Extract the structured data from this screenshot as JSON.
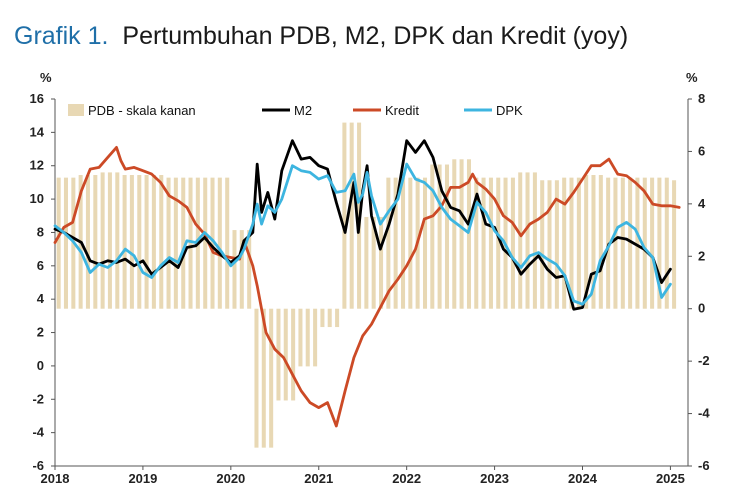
{
  "chart_data": {
    "type": "line",
    "title_prefix": "Grafik 1.",
    "title": "Pertumbuhan PDB, M2, DPK dan Kredit (yoy)",
    "left_axis": {
      "unit": "%",
      "ylim": [
        -6,
        16
      ],
      "ticks": [
        16,
        14,
        12,
        10,
        8,
        6,
        4,
        2,
        0,
        -2,
        -4,
        -6
      ]
    },
    "right_axis": {
      "unit": "%",
      "ylim": [
        -6,
        8
      ],
      "ticks": [
        8,
        6,
        4,
        2,
        0,
        -2,
        -4,
        -6
      ]
    },
    "x_axis": {
      "xlim": [
        2018,
        2025.2
      ],
      "ticks": [
        2018,
        2019,
        2020,
        2021,
        2022,
        2023,
        2024,
        2025
      ]
    },
    "legend_placement": "top",
    "colors": {
      "pdb": "#e8d8b4",
      "m2": "#000000",
      "kredit": "#cc4a26",
      "dpk": "#3db5e0"
    },
    "series": [
      {
        "name": "PDB - skala kanan",
        "axis": "right",
        "kind": "bar",
        "x": [
          2018.0,
          2018.083,
          2018.167,
          2018.25,
          2018.333,
          2018.417,
          2018.5,
          2018.583,
          2018.667,
          2018.75,
          2018.833,
          2018.917,
          2019.0,
          2019.083,
          2019.167,
          2019.25,
          2019.333,
          2019.417,
          2019.5,
          2019.583,
          2019.667,
          2019.75,
          2019.833,
          2019.917,
          2020.0,
          2020.083,
          2020.167,
          2020.25,
          2020.333,
          2020.417,
          2020.5,
          2020.583,
          2020.667,
          2020.75,
          2020.833,
          2020.917,
          2021.0,
          2021.083,
          2021.167,
          2021.25,
          2021.333,
          2021.417,
          2021.5,
          2021.583,
          2021.667,
          2021.75,
          2021.833,
          2021.917,
          2022.0,
          2022.083,
          2022.167,
          2022.25,
          2022.333,
          2022.417,
          2022.5,
          2022.583,
          2022.667,
          2022.75,
          2022.833,
          2022.917,
          2023.0,
          2023.083,
          2023.167,
          2023.25,
          2023.333,
          2023.417,
          2023.5,
          2023.583,
          2023.667,
          2023.75,
          2023.833,
          2023.917,
          2024.0,
          2024.083,
          2024.167,
          2024.25,
          2024.333,
          2024.417,
          2024.5,
          2024.583,
          2024.667,
          2024.75,
          2024.833,
          2024.917,
          2025.0
        ],
        "values": [
          5.0,
          5.0,
          5.0,
          5.1,
          5.1,
          5.1,
          5.2,
          5.2,
          5.2,
          5.1,
          5.1,
          5.1,
          5.1,
          5.1,
          5.1,
          5.0,
          5.0,
          5.0,
          5.0,
          5.0,
          5.0,
          5.0,
          5.0,
          5.0,
          3.0,
          3.0,
          3.0,
          -5.3,
          -5.3,
          -5.3,
          -3.5,
          -3.5,
          -3.5,
          -2.2,
          -2.2,
          -2.2,
          -0.7,
          -0.7,
          -0.7,
          7.1,
          7.1,
          7.1,
          3.5,
          3.5,
          3.5,
          5.0,
          5.0,
          5.0,
          5.0,
          5.0,
          5.0,
          5.5,
          5.5,
          5.5,
          5.7,
          5.7,
          5.7,
          5.0,
          5.0,
          5.0,
          5.0,
          5.0,
          5.0,
          5.2,
          5.2,
          5.2,
          4.9,
          4.9,
          4.9,
          5.0,
          5.0,
          5.0,
          5.1,
          5.1,
          5.1,
          5.0,
          5.0,
          5.0,
          5.0,
          5.0,
          5.0,
          5.0,
          5.0,
          5.0,
          4.9
        ]
      },
      {
        "name": "M2",
        "axis": "left",
        "kind": "line",
        "points": [
          [
            2018.0,
            8.2
          ],
          [
            2018.1,
            8.0
          ],
          [
            2018.2,
            7.7
          ],
          [
            2018.3,
            7.4
          ],
          [
            2018.4,
            6.3
          ],
          [
            2018.5,
            6.1
          ],
          [
            2018.6,
            6.3
          ],
          [
            2018.7,
            6.2
          ],
          [
            2018.8,
            6.4
          ],
          [
            2018.9,
            6.0
          ],
          [
            2019.0,
            6.3
          ],
          [
            2019.1,
            5.5
          ],
          [
            2019.2,
            5.9
          ],
          [
            2019.3,
            6.3
          ],
          [
            2019.4,
            5.9
          ],
          [
            2019.5,
            7.1
          ],
          [
            2019.6,
            7.2
          ],
          [
            2019.7,
            7.7
          ],
          [
            2019.8,
            7.1
          ],
          [
            2019.9,
            6.6
          ],
          [
            2020.0,
            6.2
          ],
          [
            2020.1,
            6.6
          ],
          [
            2020.15,
            7.5
          ],
          [
            2020.25,
            8.0
          ],
          [
            2020.3,
            12.1
          ],
          [
            2020.35,
            9.2
          ],
          [
            2020.42,
            10.4
          ],
          [
            2020.5,
            8.8
          ],
          [
            2020.58,
            11.7
          ],
          [
            2020.7,
            13.5
          ],
          [
            2020.8,
            12.4
          ],
          [
            2020.9,
            12.5
          ],
          [
            2021.0,
            12.0
          ],
          [
            2021.1,
            11.8
          ],
          [
            2021.2,
            9.8
          ],
          [
            2021.3,
            8.0
          ],
          [
            2021.4,
            11.0
          ],
          [
            2021.45,
            8.0
          ],
          [
            2021.5,
            10.5
          ],
          [
            2021.55,
            12.0
          ],
          [
            2021.6,
            9.0
          ],
          [
            2021.7,
            7.0
          ],
          [
            2021.8,
            8.5
          ],
          [
            2021.9,
            10.3
          ],
          [
            2022.0,
            13.5
          ],
          [
            2022.1,
            12.8
          ],
          [
            2022.2,
            13.5
          ],
          [
            2022.3,
            12.5
          ],
          [
            2022.4,
            10.5
          ],
          [
            2022.5,
            9.5
          ],
          [
            2022.6,
            9.3
          ],
          [
            2022.7,
            8.5
          ],
          [
            2022.8,
            10.3
          ],
          [
            2022.9,
            8.5
          ],
          [
            2023.0,
            8.3
          ],
          [
            2023.1,
            7.0
          ],
          [
            2023.2,
            6.5
          ],
          [
            2023.3,
            5.5
          ],
          [
            2023.4,
            6.1
          ],
          [
            2023.5,
            6.6
          ],
          [
            2023.6,
            5.8
          ],
          [
            2023.7,
            5.3
          ],
          [
            2023.8,
            5.4
          ],
          [
            2023.9,
            3.4
          ],
          [
            2024.0,
            3.5
          ],
          [
            2024.1,
            5.5
          ],
          [
            2024.2,
            5.7
          ],
          [
            2024.3,
            7.3
          ],
          [
            2024.4,
            7.7
          ],
          [
            2024.5,
            7.6
          ],
          [
            2024.6,
            7.3
          ],
          [
            2024.7,
            7.0
          ],
          [
            2024.8,
            6.5
          ],
          [
            2024.9,
            5.0
          ],
          [
            2025.0,
            5.8
          ]
        ]
      },
      {
        "name": "Kredit",
        "axis": "left",
        "kind": "line",
        "points": [
          [
            2018.0,
            7.4
          ],
          [
            2018.1,
            8.3
          ],
          [
            2018.2,
            8.6
          ],
          [
            2018.3,
            10.5
          ],
          [
            2018.4,
            11.8
          ],
          [
            2018.5,
            11.9
          ],
          [
            2018.6,
            12.5
          ],
          [
            2018.7,
            13.1
          ],
          [
            2018.75,
            12.3
          ],
          [
            2018.8,
            11.8
          ],
          [
            2018.9,
            11.9
          ],
          [
            2019.0,
            11.7
          ],
          [
            2019.1,
            11.5
          ],
          [
            2019.2,
            11.0
          ],
          [
            2019.3,
            10.2
          ],
          [
            2019.4,
            9.9
          ],
          [
            2019.5,
            9.5
          ],
          [
            2019.6,
            8.5
          ],
          [
            2019.7,
            7.9
          ],
          [
            2019.8,
            6.8
          ],
          [
            2019.9,
            6.6
          ],
          [
            2020.0,
            6.5
          ],
          [
            2020.1,
            6.4
          ],
          [
            2020.15,
            7.5
          ],
          [
            2020.25,
            6.0
          ],
          [
            2020.3,
            4.8
          ],
          [
            2020.4,
            2.0
          ],
          [
            2020.5,
            1.0
          ],
          [
            2020.6,
            0.5
          ],
          [
            2020.7,
            -0.5
          ],
          [
            2020.8,
            -1.5
          ],
          [
            2020.9,
            -2.2
          ],
          [
            2021.0,
            -2.5
          ],
          [
            2021.1,
            -2.2
          ],
          [
            2021.2,
            -3.6
          ],
          [
            2021.3,
            -1.5
          ],
          [
            2021.4,
            0.5
          ],
          [
            2021.5,
            1.8
          ],
          [
            2021.6,
            2.5
          ],
          [
            2021.7,
            3.5
          ],
          [
            2021.8,
            4.5
          ],
          [
            2021.9,
            5.2
          ],
          [
            2022.0,
            6.0
          ],
          [
            2022.1,
            7.0
          ],
          [
            2022.2,
            8.8
          ],
          [
            2022.3,
            9.0
          ],
          [
            2022.4,
            9.6
          ],
          [
            2022.5,
            10.7
          ],
          [
            2022.6,
            10.7
          ],
          [
            2022.7,
            11.0
          ],
          [
            2022.75,
            11.5
          ],
          [
            2022.8,
            11.0
          ],
          [
            2022.9,
            10.6
          ],
          [
            2023.0,
            10.0
          ],
          [
            2023.1,
            9.0
          ],
          [
            2023.2,
            8.6
          ],
          [
            2023.3,
            7.8
          ],
          [
            2023.4,
            8.5
          ],
          [
            2023.5,
            8.8
          ],
          [
            2023.6,
            9.2
          ],
          [
            2023.7,
            10.0
          ],
          [
            2023.8,
            9.7
          ],
          [
            2023.9,
            10.4
          ],
          [
            2024.0,
            11.2
          ],
          [
            2024.1,
            12.0
          ],
          [
            2024.2,
            12.0
          ],
          [
            2024.3,
            12.4
          ],
          [
            2024.4,
            11.5
          ],
          [
            2024.5,
            11.4
          ],
          [
            2024.6,
            11.0
          ],
          [
            2024.7,
            10.5
          ],
          [
            2024.8,
            9.7
          ],
          [
            2024.9,
            9.6
          ],
          [
            2025.0,
            9.6
          ],
          [
            2025.1,
            9.5
          ]
        ]
      },
      {
        "name": "DPK",
        "axis": "left",
        "kind": "line",
        "points": [
          [
            2018.0,
            8.4
          ],
          [
            2018.1,
            8.0
          ],
          [
            2018.2,
            7.5
          ],
          [
            2018.3,
            6.8
          ],
          [
            2018.4,
            5.6
          ],
          [
            2018.5,
            6.1
          ],
          [
            2018.6,
            5.9
          ],
          [
            2018.7,
            6.3
          ],
          [
            2018.8,
            7.0
          ],
          [
            2018.9,
            6.6
          ],
          [
            2019.0,
            5.6
          ],
          [
            2019.1,
            5.3
          ],
          [
            2019.2,
            6.0
          ],
          [
            2019.3,
            6.5
          ],
          [
            2019.4,
            6.2
          ],
          [
            2019.5,
            7.5
          ],
          [
            2019.6,
            7.4
          ],
          [
            2019.7,
            8.0
          ],
          [
            2019.8,
            7.5
          ],
          [
            2019.9,
            6.8
          ],
          [
            2020.0,
            6.0
          ],
          [
            2020.1,
            6.5
          ],
          [
            2020.15,
            7.0
          ],
          [
            2020.25,
            8.5
          ],
          [
            2020.3,
            9.7
          ],
          [
            2020.35,
            8.5
          ],
          [
            2020.42,
            9.6
          ],
          [
            2020.5,
            9.2
          ],
          [
            2020.58,
            10.0
          ],
          [
            2020.7,
            12.0
          ],
          [
            2020.8,
            11.7
          ],
          [
            2020.9,
            11.6
          ],
          [
            2021.0,
            11.2
          ],
          [
            2021.1,
            11.4
          ],
          [
            2021.2,
            10.4
          ],
          [
            2021.3,
            10.5
          ],
          [
            2021.4,
            11.5
          ],
          [
            2021.45,
            9.8
          ],
          [
            2021.5,
            10.3
          ],
          [
            2021.55,
            11.6
          ],
          [
            2021.6,
            10.2
          ],
          [
            2021.7,
            8.5
          ],
          [
            2021.8,
            9.3
          ],
          [
            2021.9,
            10.0
          ],
          [
            2022.0,
            12.1
          ],
          [
            2022.1,
            11.2
          ],
          [
            2022.2,
            11.0
          ],
          [
            2022.3,
            10.5
          ],
          [
            2022.4,
            9.5
          ],
          [
            2022.5,
            8.8
          ],
          [
            2022.6,
            8.4
          ],
          [
            2022.7,
            8.0
          ],
          [
            2022.8,
            9.8
          ],
          [
            2022.9,
            9.2
          ],
          [
            2023.0,
            8.1
          ],
          [
            2023.1,
            7.5
          ],
          [
            2023.2,
            6.5
          ],
          [
            2023.3,
            5.9
          ],
          [
            2023.4,
            6.6
          ],
          [
            2023.5,
            6.8
          ],
          [
            2023.6,
            6.4
          ],
          [
            2023.7,
            6.1
          ],
          [
            2023.8,
            5.4
          ],
          [
            2023.9,
            3.9
          ],
          [
            2024.0,
            3.7
          ],
          [
            2024.1,
            4.3
          ],
          [
            2024.2,
            6.3
          ],
          [
            2024.3,
            7.2
          ],
          [
            2024.4,
            8.3
          ],
          [
            2024.5,
            8.6
          ],
          [
            2024.6,
            8.2
          ],
          [
            2024.7,
            7.1
          ],
          [
            2024.8,
            6.5
          ],
          [
            2024.9,
            4.1
          ],
          [
            2025.0,
            4.9
          ]
        ]
      }
    ]
  }
}
